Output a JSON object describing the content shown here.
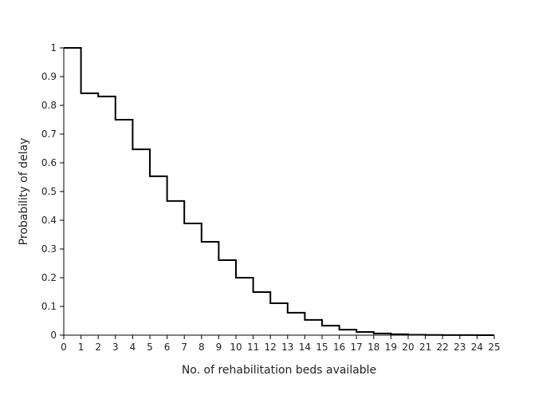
{
  "chart_data": {
    "type": "line",
    "step": "post",
    "xlabel": "No. of rehabilitation beds available",
    "ylabel": "Probability of delay",
    "xlim": [
      0,
      25
    ],
    "ylim": [
      0,
      1
    ],
    "x_ticks": [
      0,
      1,
      2,
      3,
      4,
      5,
      6,
      7,
      8,
      9,
      10,
      11,
      12,
      13,
      14,
      15,
      16,
      17,
      18,
      19,
      20,
      21,
      22,
      23,
      24,
      25
    ],
    "y_ticks": [
      0,
      0.1,
      0.2,
      0.3,
      0.4,
      0.5,
      0.6,
      0.7,
      0.8,
      0.9,
      1
    ],
    "y_tick_labels": [
      "0",
      "0.1",
      "0.2",
      "0.3",
      "0.4",
      "0.5",
      "0.6",
      "0.7",
      "0.8",
      "0.9",
      "1"
    ],
    "grid": false,
    "series": [
      {
        "x": [
          0,
          1,
          2,
          3,
          4,
          5,
          6,
          7,
          8,
          9,
          10,
          11,
          12,
          13,
          14,
          15,
          16,
          17,
          18,
          19,
          20,
          21,
          22,
          23,
          24
        ],
        "y": [
          1.0,
          0.842,
          0.831,
          0.75,
          0.647,
          0.553,
          0.467,
          0.389,
          0.325,
          0.261,
          0.2,
          0.15,
          0.111,
          0.078,
          0.053,
          0.033,
          0.019,
          0.011,
          0.006,
          0.003,
          0.0015,
          0.0008,
          0.0004,
          0.0002,
          0.0001
        ]
      }
    ]
  }
}
